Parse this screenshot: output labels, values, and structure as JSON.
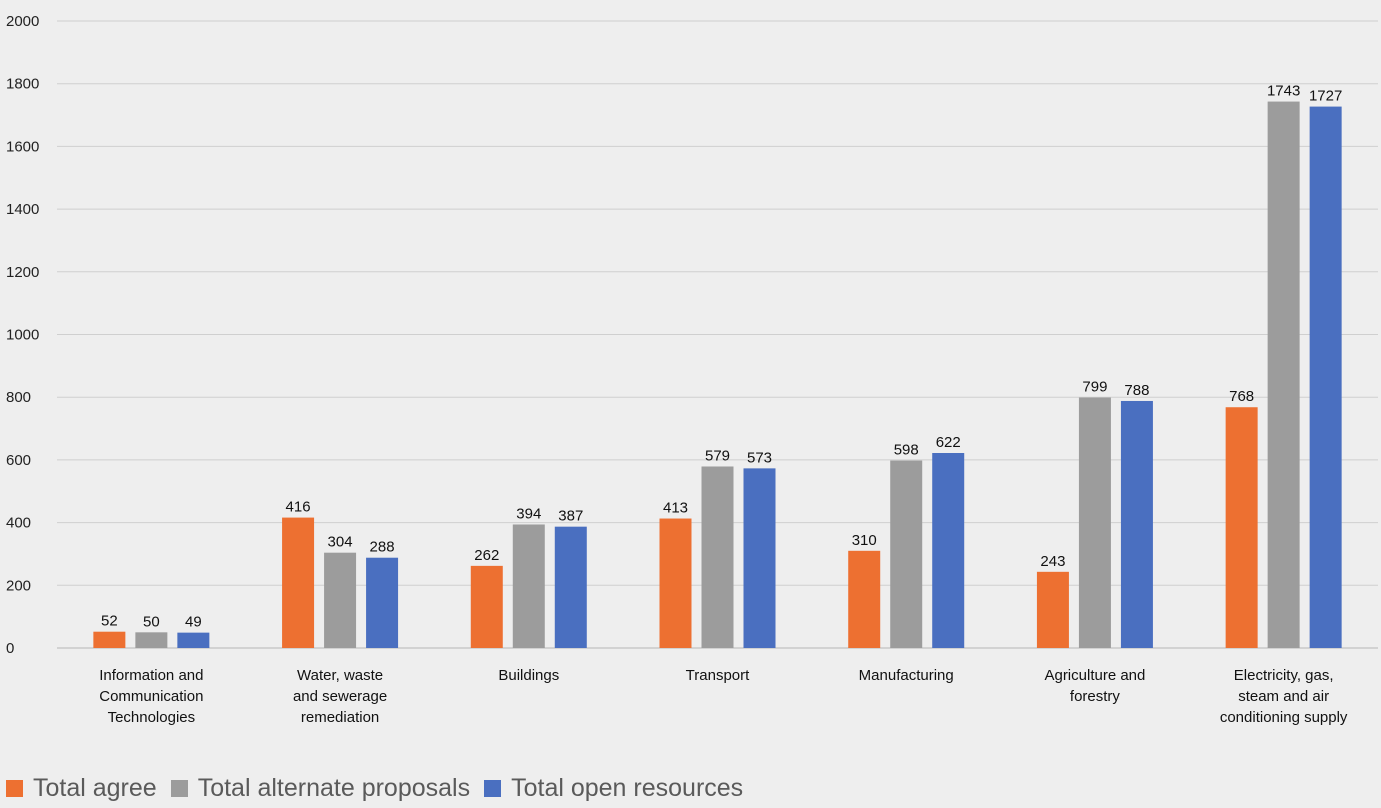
{
  "chart_data": {
    "type": "bar",
    "categories": [
      [
        "Information and",
        "Communication",
        "Technologies"
      ],
      [
        "Water, waste",
        "and sewerage",
        "remediation"
      ],
      [
        "Buildings"
      ],
      [
        "Transport"
      ],
      [
        "Manufacturing"
      ],
      [
        "Agriculture and",
        "forestry"
      ],
      [
        "Electricity, gas,",
        "steam and air",
        "conditioning supply"
      ]
    ],
    "series": [
      {
        "name": "Total agree",
        "color": "#ed7031",
        "values": [
          52,
          416,
          262,
          413,
          310,
          243,
          768
        ]
      },
      {
        "name": "Total alternate proposals",
        "color": "#9c9c9c",
        "values": [
          50,
          304,
          394,
          579,
          598,
          799,
          1743
        ]
      },
      {
        "name": "Total open resources",
        "color": "#4a6fc0",
        "values": [
          49,
          288,
          387,
          573,
          622,
          788,
          1727
        ]
      }
    ],
    "ylim": [
      0,
      2000
    ],
    "yticks": [
      0,
      200,
      400,
      600,
      800,
      1000,
      1200,
      1400,
      1600,
      1800,
      2000
    ],
    "grid": true,
    "legend_position": "bottom-left"
  }
}
